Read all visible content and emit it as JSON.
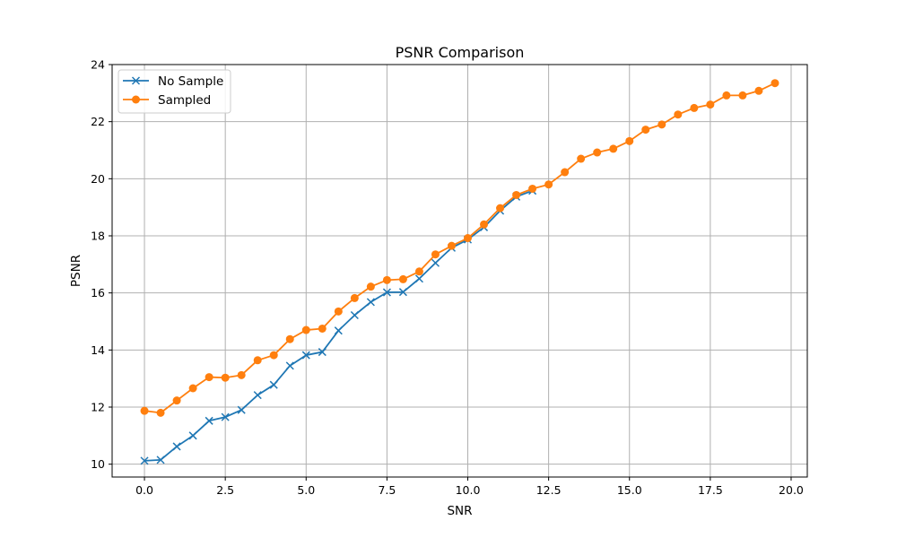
{
  "chart_data": {
    "type": "line",
    "title": "PSNR Comparison",
    "xlabel": "SNR",
    "ylabel": "PSNR",
    "xlim": [
      -1.0,
      20.5
    ],
    "ylim": [
      9.55,
      24.0
    ],
    "xticks": [
      0,
      2.5,
      5,
      7.5,
      10,
      12.5,
      15,
      17.5,
      20
    ],
    "xtick_labels": [
      "0.0",
      "2.5",
      "5.0",
      "7.5",
      "10.0",
      "12.5",
      "15.0",
      "17.5",
      "20.0"
    ],
    "yticks": [
      10,
      12,
      14,
      16,
      18,
      20,
      22,
      24
    ],
    "ytick_labels": [
      "10",
      "12",
      "14",
      "16",
      "18",
      "20",
      "22",
      "24"
    ],
    "grid": true,
    "legend_position": "top-left",
    "series": [
      {
        "name": "No Sample",
        "color": "#1f77b4",
        "marker": "x",
        "x": [
          0.0,
          0.5,
          1.0,
          1.5,
          2.0,
          2.5,
          3.0,
          3.5,
          4.0,
          4.5,
          5.0,
          5.5,
          6.0,
          6.5,
          7.0,
          7.5,
          8.0,
          8.5,
          9.0,
          9.5,
          10.0,
          10.5,
          11.0,
          11.5,
          12.0
        ],
        "y": [
          10.12,
          10.15,
          10.62,
          11.0,
          11.52,
          11.65,
          11.9,
          12.42,
          12.78,
          13.45,
          13.82,
          13.93,
          14.68,
          15.22,
          15.68,
          16.02,
          16.03,
          16.5,
          17.05,
          17.58,
          17.87,
          18.3,
          18.88,
          19.37,
          19.58
        ]
      },
      {
        "name": "Sampled",
        "color": "#ff7f0e",
        "marker": "o",
        "x": [
          0.0,
          0.5,
          1.0,
          1.5,
          2.0,
          2.5,
          3.0,
          3.5,
          4.0,
          4.5,
          5.0,
          5.5,
          6.0,
          6.5,
          7.0,
          7.5,
          8.0,
          8.5,
          9.0,
          9.5,
          10.0,
          10.5,
          11.0,
          11.5,
          12.0,
          12.5,
          13.0,
          13.5,
          14.0,
          14.5,
          15.0,
          15.5,
          16.0,
          16.5,
          17.0,
          17.5,
          18.0,
          18.5,
          19.0,
          19.5
        ],
        "y": [
          11.87,
          11.8,
          12.23,
          12.66,
          13.05,
          13.03,
          13.12,
          13.64,
          13.82,
          14.38,
          14.7,
          14.75,
          15.35,
          15.82,
          16.22,
          16.45,
          16.48,
          16.75,
          17.35,
          17.65,
          17.92,
          18.4,
          18.97,
          19.43,
          19.65,
          19.8,
          20.23,
          20.7,
          20.92,
          21.05,
          21.32,
          21.72,
          21.9,
          22.25,
          22.48,
          22.6,
          22.92,
          22.92,
          23.08,
          23.35
        ]
      }
    ]
  }
}
